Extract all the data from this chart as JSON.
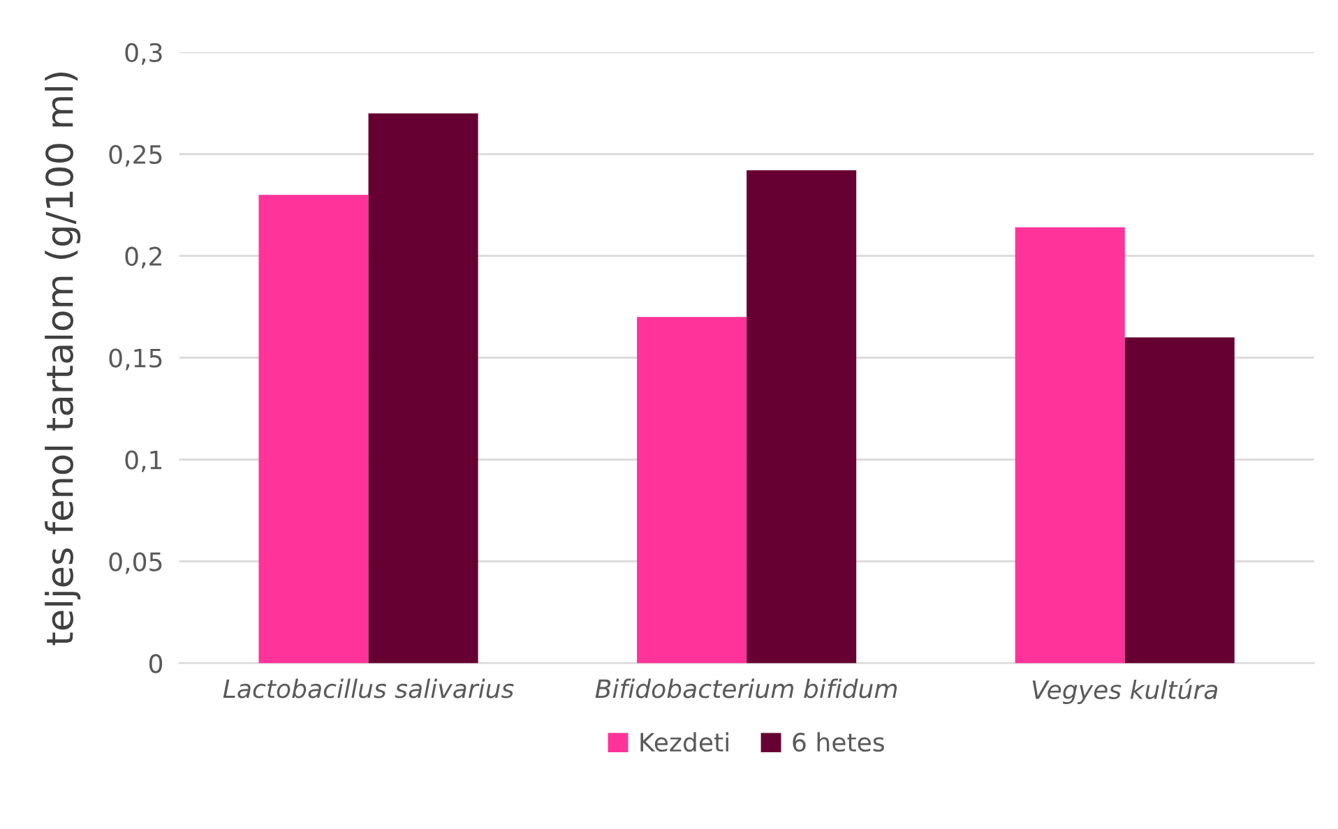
{
  "chart_data": {
    "type": "bar",
    "ylabel": "teljes fenol tartalom (g/100 ml)",
    "categories": [
      "Lactobacillus salivarius",
      "Bifidobacterium bifidum",
      "Vegyes kultúra"
    ],
    "series": [
      {
        "name": "Kezdeti",
        "color": "#ff3399",
        "values": [
          0.23,
          0.17,
          0.214
        ]
      },
      {
        "name": "6 hetes",
        "color": "#660033",
        "values": [
          0.27,
          0.242,
          0.16
        ]
      }
    ],
    "ylim": [
      0,
      0.3
    ],
    "yticks": [
      {
        "value": 0,
        "label": "0"
      },
      {
        "value": 0.05,
        "label": "0,05"
      },
      {
        "value": 0.1,
        "label": "0,1"
      },
      {
        "value": 0.15,
        "label": "0,15"
      },
      {
        "value": 0.2,
        "label": "0,2"
      },
      {
        "value": 0.25,
        "label": "0,25"
      },
      {
        "value": 0.3,
        "label": "0,3"
      }
    ],
    "grid": "y",
    "legend": "bottom"
  }
}
